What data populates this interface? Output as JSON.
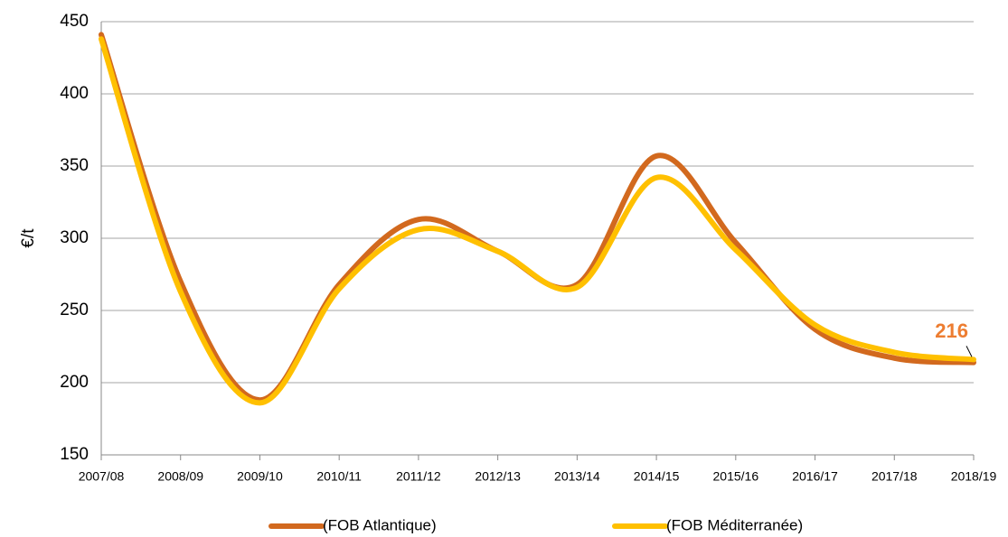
{
  "chart_data": {
    "type": "line",
    "y_label": "€/t",
    "categories": [
      "2007/08",
      "2008/09",
      "2009/10",
      "2010/11",
      "2011/12",
      "2012/13",
      "2013/14",
      "2014/15",
      "2015/16",
      "2016/17",
      "2017/18",
      "2018/19"
    ],
    "series": [
      {
        "name": "(FOB Atlantique)",
        "color": "#D2691E",
        "values": [
          441,
          270,
          188,
          268,
          313,
          291,
          268,
          357,
          297,
          237,
          217,
          214
        ]
      },
      {
        "name": "(FOB Méditerranée)",
        "color": "#FFC000",
        "values": [
          438,
          263,
          186,
          265,
          306,
          291,
          266,
          342,
          292,
          240,
          221,
          216
        ]
      }
    ],
    "label_color": "#ED7D31",
    "ylim": [
      150,
      450
    ],
    "yticks": [
      150,
      200,
      250,
      300,
      350,
      400,
      450
    ],
    "grid": true
  }
}
